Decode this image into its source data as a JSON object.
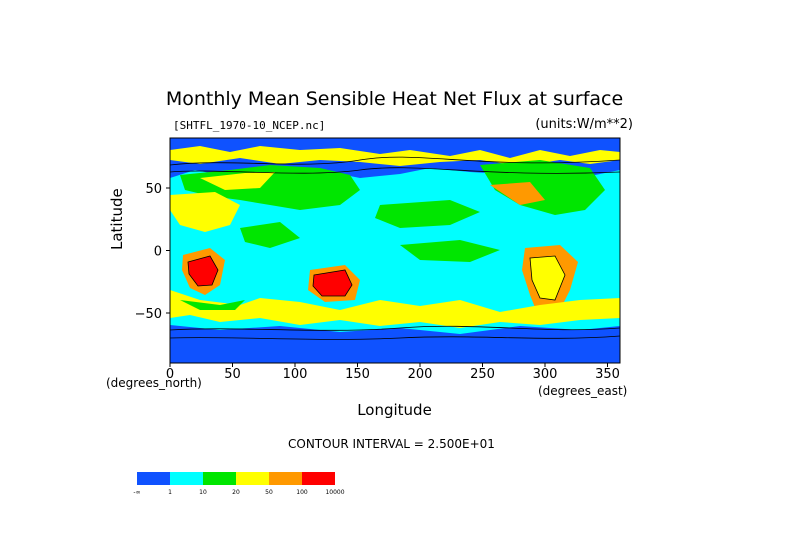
{
  "title": "Monthly Mean Sensible Heat Net Flux at surface",
  "file_label": "[SHTFL_1970-10_NCEP.nc]",
  "units_label": "(units:W/m**2)",
  "xlabel": "Longitude",
  "ylabel": "Latitude",
  "x_unit": "(degrees_north)",
  "x_unit_east": "(degrees_east)",
  "contour_interval": "CONTOUR INTERVAL = 2.500E+01",
  "x_ticks": [
    "0",
    "50",
    "100",
    "150",
    "200",
    "250",
    "300",
    "350"
  ],
  "y_ticks": [
    "50",
    "0",
    "−50"
  ],
  "legend_labels": [
    "-∞",
    "1",
    "10",
    "20",
    "50",
    "100",
    "10000"
  ],
  "colors": {
    "bin1": "#0f52ff",
    "bin2": "#00ffff",
    "bin3": "#00e600",
    "bin4": "#ffff00",
    "bin5": "#ff9900",
    "bin6": "#ff0000"
  },
  "chart_data": {
    "type": "heatmap",
    "title": "Monthly Mean Sensible Heat Net Flux at surface",
    "xlabel": "Longitude",
    "ylabel": "Latitude",
    "xlim": [
      0,
      360
    ],
    "ylim": [
      -90,
      90
    ],
    "color_bins": [
      {
        "range": [
          "-∞",
          "1"
        ],
        "color": "#0f52ff"
      },
      {
        "range": [
          "1",
          "10"
        ],
        "color": "#00ffff"
      },
      {
        "range": [
          "10",
          "20"
        ],
        "color": "#00e600"
      },
      {
        "range": [
          "20",
          "50"
        ],
        "color": "#ffff00"
      },
      {
        "range": [
          "50",
          "100"
        ],
        "color": "#ff9900"
      },
      {
        "range": [
          "100",
          "10000"
        ],
        "color": "#ff0000"
      }
    ]
  }
}
